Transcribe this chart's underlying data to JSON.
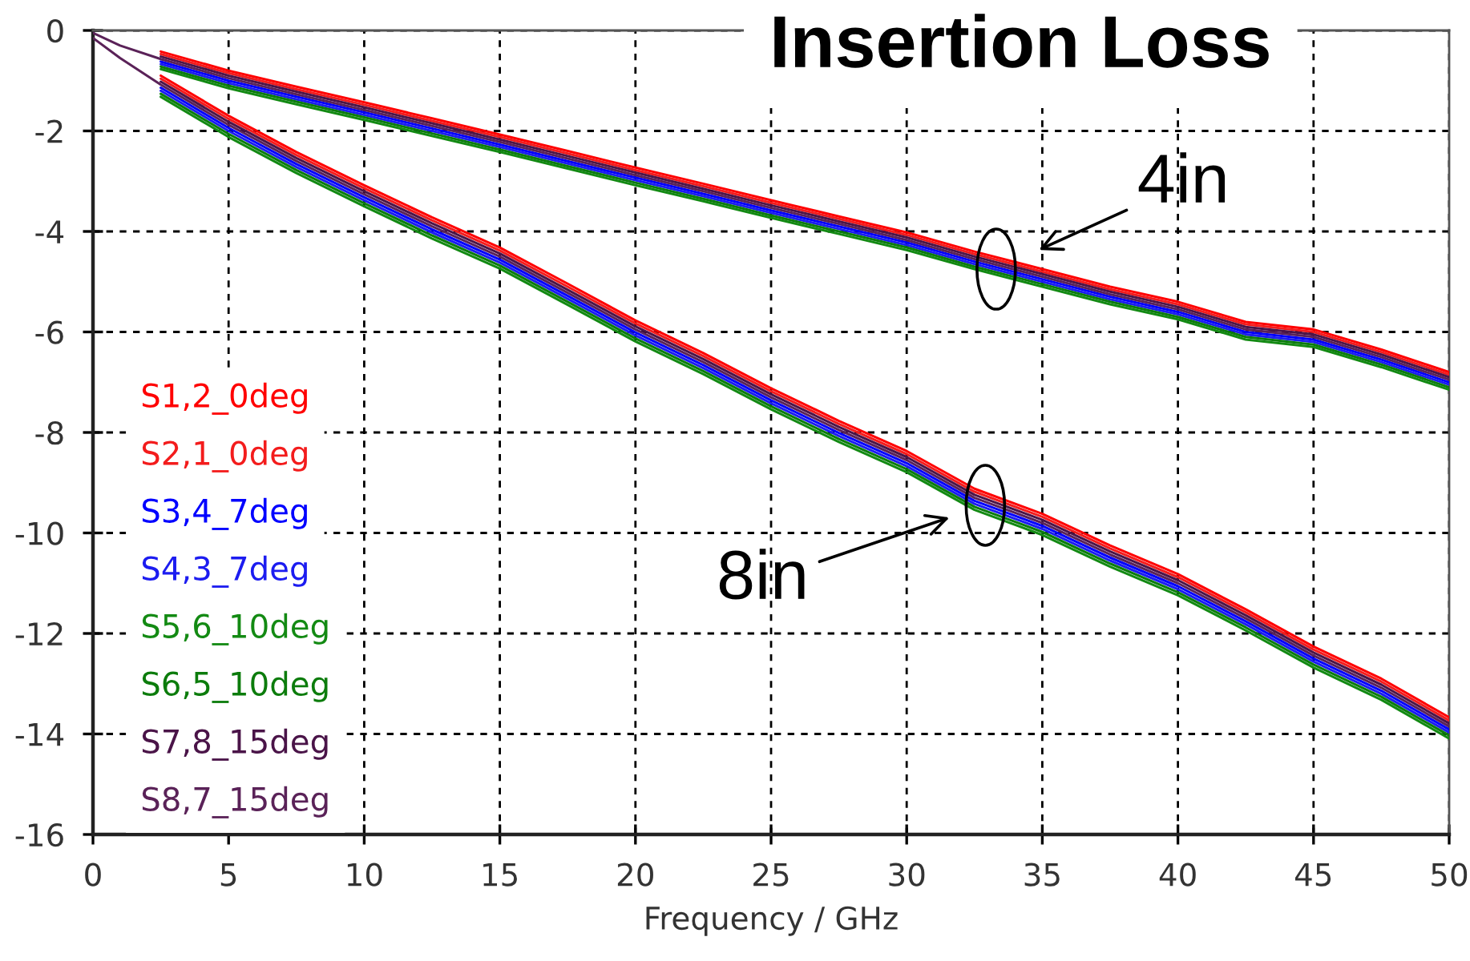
{
  "chart_data": {
    "type": "line",
    "title": "Insertion Loss",
    "xlabel": "Frequency / GHz",
    "x": [
      0,
      1,
      2.5,
      5,
      7.5,
      10,
      12.5,
      15,
      17.5,
      20,
      22.5,
      25,
      27.5,
      30,
      32.5,
      35,
      37.5,
      40,
      42.5,
      45,
      47.5,
      50
    ],
    "xlim": [
      0,
      50
    ],
    "xticks": [
      0,
      5,
      10,
      15,
      20,
      25,
      30,
      35,
      40,
      45,
      50
    ],
    "ylim": [
      -16,
      0
    ],
    "yticks": [
      -16,
      -14,
      -12,
      -10,
      -8,
      -6,
      -4,
      -2,
      0
    ],
    "grid": true,
    "legend": "bottom left",
    "series": [
      {
        "name": "S1,2_0deg",
        "color": "#ff0000",
        "values": [
          null,
          null,
          -0.42,
          -0.8,
          -1.12,
          -1.43,
          -1.75,
          -2.07,
          -2.4,
          -2.73,
          -3.05,
          -3.38,
          -3.7,
          -4.02,
          -4.4,
          -4.75,
          -5.1,
          -5.4,
          -5.8,
          -5.95,
          -6.35,
          -6.8
        ]
      },
      {
        "name": "S2,1_0deg",
        "color": "#f31c1c",
        "values": [
          null,
          null,
          -0.47,
          -0.85,
          -1.17,
          -1.48,
          -1.8,
          -2.12,
          -2.45,
          -2.78,
          -3.1,
          -3.43,
          -3.75,
          -4.07,
          -4.45,
          -4.8,
          -5.15,
          -5.45,
          -5.85,
          -6.0,
          -6.4,
          -6.85
        ]
      },
      {
        "name": "S3,4_7deg",
        "color": "#0000ff",
        "values": [
          null,
          null,
          -0.62,
          -1.0,
          -1.32,
          -1.63,
          -1.95,
          -2.27,
          -2.6,
          -2.93,
          -3.25,
          -3.58,
          -3.9,
          -4.22,
          -4.6,
          -4.95,
          -5.3,
          -5.6,
          -6.0,
          -6.15,
          -6.55,
          -7.0
        ]
      },
      {
        "name": "S4,3_7deg",
        "color": "#1c1cf0",
        "values": [
          null,
          null,
          -0.67,
          -1.05,
          -1.37,
          -1.68,
          -2.0,
          -2.32,
          -2.65,
          -2.98,
          -3.3,
          -3.63,
          -3.95,
          -4.27,
          -4.65,
          -5.0,
          -5.35,
          -5.65,
          -6.05,
          -6.2,
          -6.6,
          -7.05
        ]
      },
      {
        "name": "S5,6_10deg",
        "color": "#138a13",
        "values": [
          null,
          null,
          -0.77,
          -1.15,
          -1.47,
          -1.78,
          -2.1,
          -2.42,
          -2.75,
          -3.08,
          -3.4,
          -3.73,
          -4.05,
          -4.37,
          -4.75,
          -5.1,
          -5.45,
          -5.75,
          -6.15,
          -6.3,
          -6.7,
          -7.15
        ]
      },
      {
        "name": "S6,5_10deg",
        "color": "#0c7c0c",
        "values": [
          null,
          null,
          -0.72,
          -1.1,
          -1.42,
          -1.73,
          -2.05,
          -2.37,
          -2.7,
          -3.03,
          -3.35,
          -3.68,
          -4.0,
          -4.32,
          -4.7,
          -5.05,
          -5.4,
          -5.7,
          -6.1,
          -6.25,
          -6.65,
          -7.1
        ]
      },
      {
        "name": "S7,8_15deg",
        "color": "#4a1448",
        "values": [
          null,
          null,
          -0.52,
          -0.9,
          -1.22,
          -1.53,
          -1.85,
          -2.17,
          -2.5,
          -2.83,
          -3.15,
          -3.48,
          -3.8,
          -4.12,
          -4.5,
          -4.85,
          -5.2,
          -5.5,
          -5.9,
          -6.05,
          -6.45,
          -6.9
        ]
      },
      {
        "name": "S8,7_15deg",
        "color": "#5a2258",
        "values": [
          -0.05,
          -0.3,
          -0.57,
          -0.95,
          -1.27,
          -1.58,
          -1.9,
          -2.22,
          -2.55,
          -2.88,
          -3.2,
          -3.53,
          -3.85,
          -4.17,
          -4.55,
          -4.9,
          -5.25,
          -5.55,
          -5.95,
          -6.1,
          -6.5,
          -6.95
        ]
      },
      {
        "color": "#ff0000",
        "values": [
          null,
          null,
          -0.9,
          -1.7,
          -2.42,
          -3.08,
          -3.72,
          -4.32,
          -5.04,
          -5.77,
          -6.42,
          -7.12,
          -7.77,
          -8.37,
          -9.12,
          -9.62,
          -10.25,
          -10.82,
          -11.52,
          -12.26,
          -12.9,
          -13.67
        ]
      },
      {
        "color": "#f31c1c",
        "values": [
          null,
          null,
          -0.96,
          -1.76,
          -2.48,
          -3.14,
          -3.78,
          -4.38,
          -5.1,
          -5.83,
          -6.48,
          -7.18,
          -7.83,
          -8.43,
          -9.18,
          -9.68,
          -10.31,
          -10.88,
          -11.58,
          -12.32,
          -12.96,
          -13.73
        ]
      },
      {
        "color": "#0000ff",
        "values": [
          null,
          null,
          -1.14,
          -1.94,
          -2.66,
          -3.32,
          -3.96,
          -4.56,
          -5.28,
          -6.01,
          -6.66,
          -7.36,
          -8.01,
          -8.61,
          -9.36,
          -9.86,
          -10.49,
          -11.06,
          -11.76,
          -12.5,
          -13.14,
          -13.91
        ]
      },
      {
        "color": "#1c1cf0",
        "values": [
          null,
          null,
          -1.2,
          -2.0,
          -2.72,
          -3.38,
          -4.02,
          -4.62,
          -5.34,
          -6.07,
          -6.72,
          -7.42,
          -8.07,
          -8.67,
          -9.42,
          -9.92,
          -10.55,
          -11.12,
          -11.82,
          -12.56,
          -13.2,
          -13.97
        ]
      },
      {
        "color": "#138a13",
        "values": [
          null,
          null,
          -1.32,
          -2.12,
          -2.84,
          -3.5,
          -4.14,
          -4.74,
          -5.46,
          -6.19,
          -6.84,
          -7.54,
          -8.19,
          -8.79,
          -9.54,
          -10.04,
          -10.67,
          -11.24,
          -11.94,
          -12.68,
          -13.32,
          -14.09
        ]
      },
      {
        "color": "#0c7c0c",
        "values": [
          null,
          null,
          -1.26,
          -2.06,
          -2.78,
          -3.44,
          -4.08,
          -4.68,
          -5.4,
          -6.13,
          -6.78,
          -7.48,
          -8.13,
          -8.73,
          -9.48,
          -9.98,
          -10.61,
          -11.18,
          -11.88,
          -12.62,
          -13.26,
          -14.03
        ]
      },
      {
        "color": "#4a1448",
        "values": [
          null,
          null,
          -1.02,
          -1.82,
          -2.54,
          -3.2,
          -3.84,
          -4.44,
          -5.16,
          -5.89,
          -6.54,
          -7.24,
          -7.89,
          -8.49,
          -9.24,
          -9.74,
          -10.37,
          -10.94,
          -11.64,
          -12.38,
          -13.02,
          -13.79
        ]
      },
      {
        "color": "#5a2258",
        "values": [
          -0.15,
          -0.55,
          -1.08,
          -1.88,
          -2.6,
          -3.26,
          -3.9,
          -4.5,
          -5.22,
          -5.95,
          -6.6,
          -7.3,
          -7.95,
          -8.55,
          -9.3,
          -9.8,
          -10.43,
          -11.0,
          -11.7,
          -12.44,
          -13.08,
          -13.85
        ]
      }
    ],
    "annotations": [
      {
        "text": "4in",
        "x": 33.3,
        "y": -4.75
      },
      {
        "text": "8in",
        "x": 32.9,
        "y": -9.45
      }
    ]
  }
}
